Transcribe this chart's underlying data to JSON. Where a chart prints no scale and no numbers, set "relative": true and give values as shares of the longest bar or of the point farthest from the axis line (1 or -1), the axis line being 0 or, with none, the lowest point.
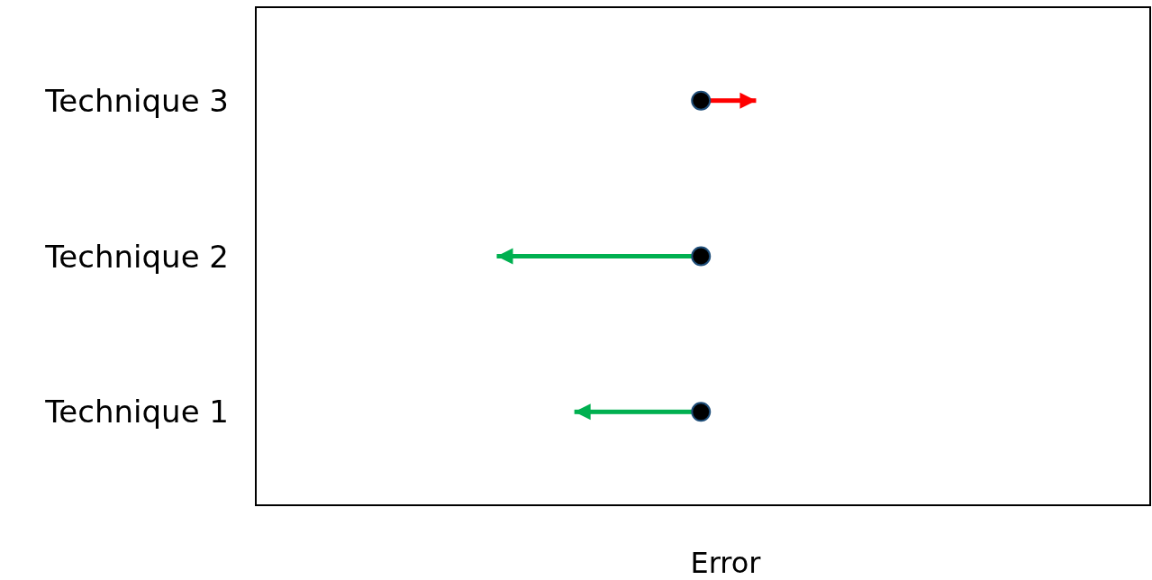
{
  "chart_data": {
    "type": "bar",
    "orientation": "horizontal",
    "relative": true,
    "xlabel": "Error",
    "categories": [
      "Technique 3",
      "Technique 2",
      "Technique 1"
    ],
    "values": [
      0.27,
      -1,
      -0.62
    ],
    "colors": [
      "#ff0000",
      "#00b050",
      "#00b050"
    ],
    "tick_labels": "y"
  }
}
